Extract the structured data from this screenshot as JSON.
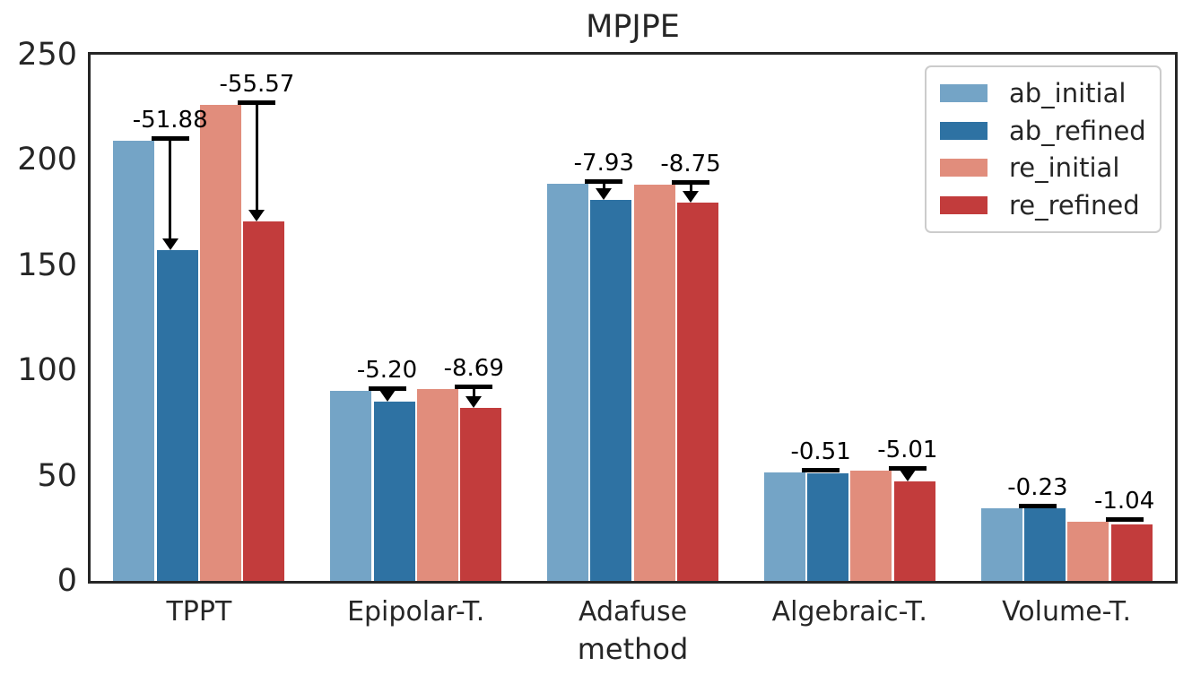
{
  "chart_data": {
    "type": "bar",
    "title": "MPJPE",
    "xlabel": "method",
    "ylabel": "",
    "ylim": [
      0,
      250
    ],
    "yticks": [
      0,
      50,
      100,
      150,
      200,
      250
    ],
    "grid": false,
    "legend_position": "upper right",
    "categories": [
      "TPPT",
      "Epipolar-T.",
      "Adafuse",
      "Algebraic-T.",
      "Volume-T."
    ],
    "series": [
      {
        "name": "ab_initial",
        "color": "#74a4c6",
        "values": [
          209.0,
          90.3,
          188.7,
          51.7,
          34.6
        ]
      },
      {
        "name": "ab_refined",
        "color": "#2e72a3",
        "values": [
          157.1,
          85.1,
          180.8,
          51.2,
          34.4
        ]
      },
      {
        "name": "re_initial",
        "color": "#e18d7c",
        "values": [
          226.2,
          91.0,
          188.3,
          52.2,
          28.0
        ]
      },
      {
        "name": "re_refined",
        "color": "#c23c3c",
        "values": [
          170.6,
          82.3,
          179.6,
          47.2,
          27.0
        ]
      }
    ],
    "annotations": [
      {
        "category": "TPPT",
        "from_series": "ab_initial",
        "target_series": "ab_refined",
        "label": "-51.88"
      },
      {
        "category": "TPPT",
        "from_series": "re_initial",
        "target_series": "re_refined",
        "label": "-55.57"
      },
      {
        "category": "Epipolar-T.",
        "from_series": "ab_initial",
        "target_series": "ab_refined",
        "label": "-5.20"
      },
      {
        "category": "Epipolar-T.",
        "from_series": "re_initial",
        "target_series": "re_refined",
        "label": "-8.69"
      },
      {
        "category": "Adafuse",
        "from_series": "ab_initial",
        "target_series": "ab_refined",
        "label": "-7.93"
      },
      {
        "category": "Adafuse",
        "from_series": "re_initial",
        "target_series": "re_refined",
        "label": "-8.75"
      },
      {
        "category": "Algebraic-T.",
        "from_series": "ab_initial",
        "target_series": "ab_refined",
        "label": "-0.51"
      },
      {
        "category": "Algebraic-T.",
        "from_series": "re_initial",
        "target_series": "re_refined",
        "label": "-5.01"
      },
      {
        "category": "Volume-T.",
        "from_series": "ab_initial",
        "target_series": "ab_refined",
        "label": "-0.23"
      },
      {
        "category": "Volume-T.",
        "from_series": "re_initial",
        "target_series": "re_refined",
        "label": "-1.04"
      }
    ],
    "colors": {
      "text": "#262626",
      "annotation": "#000000",
      "axes_frame": "#262626",
      "legend_border": "#cccccc",
      "background": "#ffffff"
    }
  }
}
